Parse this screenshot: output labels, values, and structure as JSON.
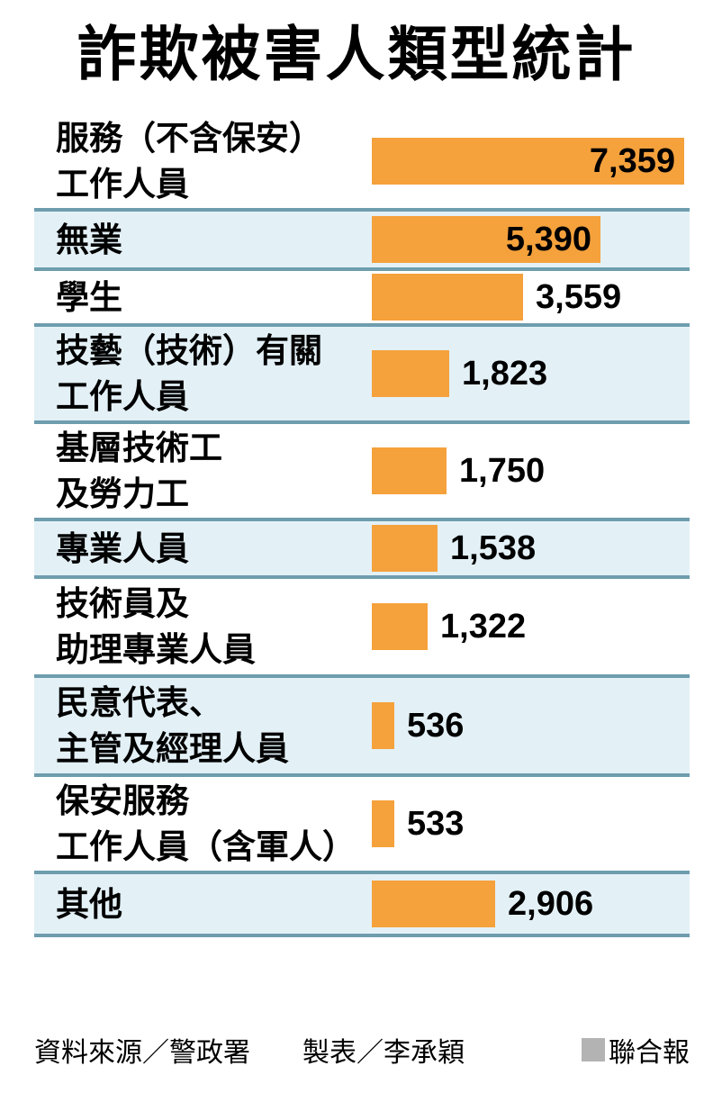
{
  "title": "詐欺被害人類型統計",
  "chart_data": {
    "type": "bar",
    "orientation": "horizontal",
    "title": "詐欺被害人類型統計",
    "categories": [
      "服務（不含保安）工作人員",
      "無業",
      "學生",
      "技藝（技術）有關工作人員",
      "基層技術工及勞力工",
      "專業人員",
      "技術員及助理專業人員",
      "民意代表、主管及經理人員",
      "保安服務工作人員（含軍人）",
      "其他"
    ],
    "values": [
      7359,
      5390,
      3559,
      1823,
      1750,
      1538,
      1322,
      536,
      533,
      2906
    ],
    "value_labels": [
      "7,359",
      "5,390",
      "3,559",
      "1,823",
      "1,750",
      "1,538",
      "1,322",
      "536",
      "533",
      "2,906"
    ],
    "xlim": [
      0,
      7359
    ],
    "grid": false,
    "legend": "none",
    "bar_color": "#F5A13C"
  },
  "rows": [
    {
      "line1": "服務（不含保安）",
      "line2": "工作人員",
      "value": "7,359"
    },
    {
      "line1": "無業",
      "line2": "",
      "value": "5,390"
    },
    {
      "line1": "學生",
      "line2": "",
      "value": "3,559"
    },
    {
      "line1": "技藝（技術）有關",
      "line2": "工作人員",
      "value": "1,823"
    },
    {
      "line1": "基層技術工",
      "line2": "及勞力工",
      "value": "1,750"
    },
    {
      "line1": "專業人員",
      "line2": "",
      "value": "1,538"
    },
    {
      "line1": "技術員及",
      "line2": "助理專業人員",
      "value": "1,322"
    },
    {
      "line1": "民意代表、",
      "line2": "主管及經理人員",
      "value": "536"
    },
    {
      "line1": "保安服務",
      "line2": "工作人員（含軍人）",
      "value": "533"
    },
    {
      "line1": "其他",
      "line2": "",
      "value": "2,906"
    }
  ],
  "footer": {
    "source": "資料來源／警政署",
    "credit": "製表／李承穎",
    "brand": "聯合報"
  },
  "colors": {
    "bar": "#F5A13C",
    "row_alt_bg": "#E3F1F7",
    "divider": "#6E9DAE",
    "brand_square": "#B3B3B3",
    "text": "#000000",
    "background": "#FFFFFF"
  }
}
